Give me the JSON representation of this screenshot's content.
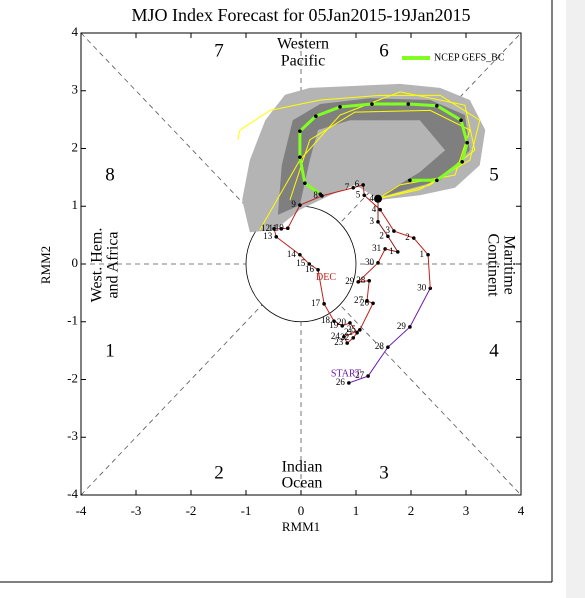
{
  "chart_data": {
    "type": "line",
    "title": "MJO Index Forecast for 05Jan2015-19Jan2015",
    "x_label": "RMM1",
    "y_label": "RMM2",
    "xlim": [
      -4,
      4
    ],
    "ylim": [
      -4,
      4
    ],
    "xticks": [
      -4,
      -3,
      -2,
      -1,
      0,
      1,
      2,
      3,
      4
    ],
    "yticks": [
      -4,
      -3,
      -2,
      -1,
      0,
      1,
      2,
      3,
      4
    ],
    "phase_labels": [
      "1",
      "2",
      "3",
      "4",
      "5",
      "6",
      "7",
      "8"
    ],
    "regions": {
      "top": [
        "Western",
        "Pacific"
      ],
      "bottom": [
        "Indian",
        "Ocean"
      ],
      "left": [
        "West. Hem.",
        "and Africa"
      ],
      "right": [
        "Maritime",
        "Continent"
      ]
    },
    "start_label": "START",
    "month_label": "DEC",
    "spread": [
      {
        "color": "#b4b4b4",
        "x": [
          1.44,
          2.16,
          2.8,
          3.25,
          3.35,
          3.07,
          2.53,
          1.8,
          0.89,
          0.16,
          -0.29,
          -0.65,
          -0.93,
          -1.07,
          -0.93,
          -0.47,
          -0.02,
          0.53,
          0.98
        ],
        "y": [
          1.11,
          1.19,
          1.32,
          1.71,
          2.32,
          2.84,
          3.05,
          3.12,
          3.08,
          3.05,
          2.93,
          2.49,
          1.8,
          1.11,
          0.55,
          0.59,
          0.94,
          1.19,
          1.37
        ]
      },
      {
        "color": "#7f7f7f",
        "x": [
          1.44,
          2.53,
          3.07,
          2.98,
          2.35,
          1.25,
          0.35,
          -0.15,
          -0.35,
          -0.42,
          -0.02,
          0.16,
          0.31,
          0.89,
          2.16,
          2.62,
          2.16,
          1.62
        ],
        "y": [
          1.16,
          1.45,
          1.97,
          2.58,
          2.84,
          2.87,
          2.77,
          2.49,
          1.71,
          0.85,
          1.02,
          1.8,
          2.32,
          2.49,
          2.49,
          1.97,
          1.59,
          1.28
        ]
      }
    ],
    "members": [
      {
        "color": "#ffff00",
        "x": [
          1.4,
          2.16,
          3.07,
          3.25,
          2.53,
          1.44,
          0.35,
          -0.56,
          -1.11,
          -1.15
        ],
        "y": [
          1.13,
          1.29,
          1.8,
          2.49,
          2.92,
          2.92,
          2.84,
          2.66,
          2.32,
          2.15
        ]
      },
      {
        "color": "#ffff00",
        "x": [
          1.4,
          2.35,
          3.16,
          2.98,
          1.8,
          0.71,
          -0.02,
          -0.75
        ],
        "y": [
          1.13,
          1.37,
          1.97,
          2.75,
          2.98,
          2.58,
          1.8,
          0.59
        ]
      },
      {
        "color": "#ffff00",
        "x": [
          1.4,
          1.8,
          2.8,
          3.07,
          2.35,
          0.98,
          0.16,
          -0.2
        ],
        "y": [
          1.13,
          1.37,
          1.54,
          2.32,
          2.66,
          2.63,
          2.15,
          1.11
        ]
      }
    ],
    "forecast": {
      "name": "NCEP GEFS_BC",
      "color": "#80ff20",
      "x": [
        1.98,
        2.47,
        2.93,
        3.02,
        2.91,
        2.47,
        1.95,
        1.29,
        0.71,
        0.27,
        -0.02,
        -0.02,
        0.07,
        0.35
      ],
      "y": [
        1.45,
        1.45,
        1.77,
        2.1,
        2.49,
        2.74,
        2.77,
        2.77,
        2.72,
        2.56,
        2.3,
        1.85,
        1.4,
        1.21
      ]
    },
    "observed": [
      {
        "color": "#6a1ab0",
        "x": [
          0.87,
          1.22,
          1.58,
          1.98,
          2.35
        ],
        "y": [
          -2.06,
          -1.94,
          -1.44,
          -1.09,
          -0.42
        ],
        "labels": [
          "26",
          "27",
          "28",
          "29",
          "30"
        ]
      },
      {
        "color": "#c0201a",
        "x": [
          2.31,
          2.05,
          1.69,
          1.44,
          1.15,
          1.13,
          0.95,
          0.38,
          -0.02,
          -0.24,
          -0.36,
          -0.49,
          -0.45,
          -0.02,
          0.15,
          0.31,
          0.42,
          0.6,
          0.75,
          0.89,
          1.02,
          0.95,
          0.84,
          0.78,
          1.07,
          1.31,
          1.2,
          1.24,
          1.04,
          1.4,
          1.53
        ],
        "y": [
          0.16,
          0.45,
          0.57,
          0.94,
          1.19,
          1.37,
          1.32,
          1.18,
          1.02,
          0.62,
          0.61,
          0.61,
          0.47,
          0.16,
          0.0,
          -0.1,
          -0.69,
          -0.99,
          -1.07,
          -1.02,
          -1.19,
          -1.28,
          -1.37,
          -1.26,
          -1.14,
          -0.68,
          -0.64,
          -0.29,
          -0.31,
          0.02,
          0.26
        ],
        "labels": [
          "1",
          "2",
          "3",
          "4",
          "5",
          "6",
          "7",
          "8",
          "9",
          "10",
          "11",
          "12",
          "13",
          "14",
          "15",
          "16",
          "17",
          "18",
          "19",
          "20",
          "21",
          "22",
          "23",
          "24",
          "25",
          "26",
          "27",
          "28",
          "29",
          "30",
          "31"
        ]
      },
      {
        "color": "#8b1a1a",
        "x": [
          1.76,
          1.58,
          1.4,
          1.4
        ],
        "y": [
          0.21,
          0.48,
          0.73,
          1.13
        ],
        "labels": [
          "1",
          "2",
          "3",
          "4"
        ]
      }
    ]
  }
}
